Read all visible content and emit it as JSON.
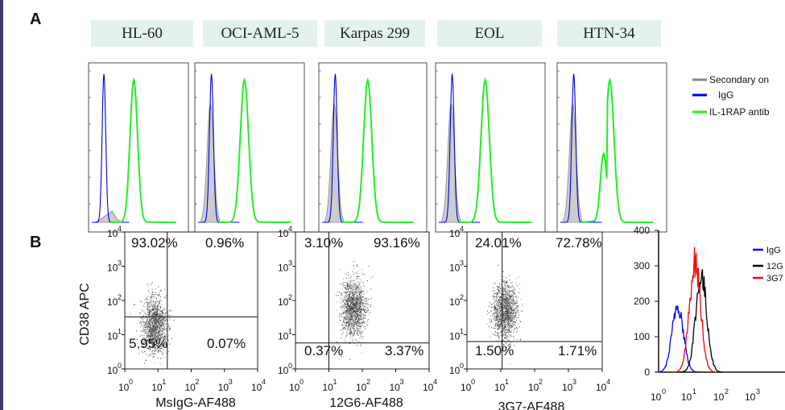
{
  "panels": {
    "a_letter": "A",
    "b_letter": "B"
  },
  "panel_a": {
    "cell_lines": [
      "HL-60",
      "OCI-AML-5",
      "Karpas 299",
      "EOL",
      "HTN-34"
    ],
    "legend": [
      {
        "label": "Secondary on",
        "color": "#888888"
      },
      {
        "label": "IgG",
        "color": "#0000dd"
      },
      {
        "label": "IL-1RAP antib",
        "color": "#22ee22"
      }
    ]
  },
  "panel_b": {
    "y_axis_label": "CD38 APC",
    "scatter_plots": [
      {
        "x_label": "MsIgG-AF488",
        "q_ul": "93.02%",
        "q_ur": "0.96%",
        "q_ll": "5.95%",
        "q_lr": "0.07%"
      },
      {
        "x_label": "12G6-AF488",
        "q_ul": "3.10%",
        "q_ur": "93.16%",
        "q_ll": "0.37%",
        "q_lr": "3.37%"
      },
      {
        "x_label": "3G7-AF488",
        "q_ul": "24.01%",
        "q_ur": "72.78%",
        "q_ll": "1.50%",
        "q_lr": "1.71%"
      }
    ],
    "histogram": {
      "y_ticks": [
        "400",
        "300",
        "200",
        "100",
        "0"
      ],
      "x_ticks": [
        "10",
        "10",
        "10",
        "10"
      ],
      "x_tick_exps": [
        "0",
        "1",
        "2",
        "3"
      ],
      "legend": [
        {
          "label": "IgG",
          "color": "#0000ff"
        },
        {
          "label": "12G",
          "color": "#000000"
        },
        {
          "label": "3G7",
          "color": "#ff0000"
        }
      ]
    }
  },
  "chart_data": [
    {
      "type": "area",
      "title": "",
      "panel": "A",
      "x_scale": "log",
      "series": [
        {
          "name": "Secondary on",
          "color": "#888888"
        },
        {
          "name": "IgG",
          "color": "#0000dd"
        },
        {
          "name": "IL-1RAP antib",
          "color": "#22ee22"
        }
      ],
      "categories": [
        "HL-60",
        "OCI-AML-5",
        "Karpas 299",
        "EOL",
        "HTN-34"
      ]
    },
    {
      "type": "scatter",
      "panel": "B",
      "xlabel": "MsIgG-AF488",
      "ylabel": "CD38 APC",
      "x_scale": "log",
      "y_scale": "log",
      "xlim": [
        1,
        10000
      ],
      "ylim": [
        1,
        10000
      ],
      "quadrants": {
        "upper_left": 93.02,
        "upper_right": 0.96,
        "lower_left": 5.95,
        "lower_right": 0.07
      }
    },
    {
      "type": "scatter",
      "panel": "B",
      "xlabel": "12G6-AF488",
      "ylabel": "",
      "x_scale": "log",
      "y_scale": "log",
      "xlim": [
        1,
        10000
      ],
      "ylim": [
        1,
        10000
      ],
      "quadrants": {
        "upper_left": 3.1,
        "upper_right": 93.16,
        "lower_left": 0.37,
        "lower_right": 3.37
      }
    },
    {
      "type": "scatter",
      "panel": "B",
      "xlabel": "3G7-AF488",
      "ylabel": "",
      "x_scale": "log",
      "y_scale": "log",
      "xlim": [
        1,
        10000
      ],
      "ylim": [
        1,
        10000
      ],
      "quadrants": {
        "upper_left": 24.01,
        "upper_right": 72.78,
        "lower_left": 1.5,
        "lower_right": 1.71
      }
    },
    {
      "type": "line",
      "panel": "B",
      "xlabel": "",
      "ylabel": "",
      "x_scale": "log",
      "ylim": [
        0,
        400
      ],
      "series": [
        {
          "name": "IgG",
          "color": "#0000ff",
          "peak_x": 4,
          "peak_y": 190
        },
        {
          "name": "12G",
          "color": "#000000",
          "peak_x": 22,
          "peak_y": 270
        },
        {
          "name": "3G7",
          "color": "#ff0000",
          "peak_x": 14,
          "peak_y": 310
        }
      ]
    }
  ]
}
